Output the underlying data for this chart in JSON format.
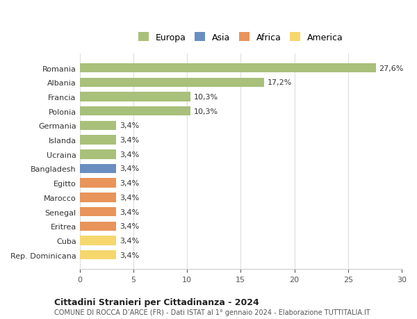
{
  "categories": [
    "Rep. Dominicana",
    "Cuba",
    "Eritrea",
    "Senegal",
    "Marocco",
    "Egitto",
    "Bangladesh",
    "Ucraina",
    "Islanda",
    "Germania",
    "Polonia",
    "Francia",
    "Albania",
    "Romania"
  ],
  "values": [
    3.4,
    3.4,
    3.4,
    3.4,
    3.4,
    3.4,
    3.4,
    3.4,
    3.4,
    3.4,
    10.3,
    10.3,
    17.2,
    27.6
  ],
  "colors": [
    "#f5d76e",
    "#f5d76e",
    "#e8945a",
    "#e8945a",
    "#e8945a",
    "#e8945a",
    "#6a8ec2",
    "#a8c07a",
    "#a8c07a",
    "#a8c07a",
    "#a8c07a",
    "#a8c07a",
    "#a8c07a",
    "#a8c07a"
  ],
  "legend_labels": [
    "Europa",
    "Asia",
    "Africa",
    "America"
  ],
  "legend_colors": [
    "#a8c07a",
    "#6a8ec2",
    "#e8945a",
    "#f5d76e"
  ],
  "title": "Cittadini Stranieri per Cittadinanza - 2024",
  "subtitle": "COMUNE DI ROCCA D’ARCE (FR) - Dati ISTAT al 1° gennaio 2024 - Elaborazione TUTTITALIA.IT",
  "xlim": [
    0,
    30
  ],
  "xticks": [
    0,
    5,
    10,
    15,
    20,
    25,
    30
  ],
  "background_color": "#ffffff",
  "grid_color": "#dddddd"
}
